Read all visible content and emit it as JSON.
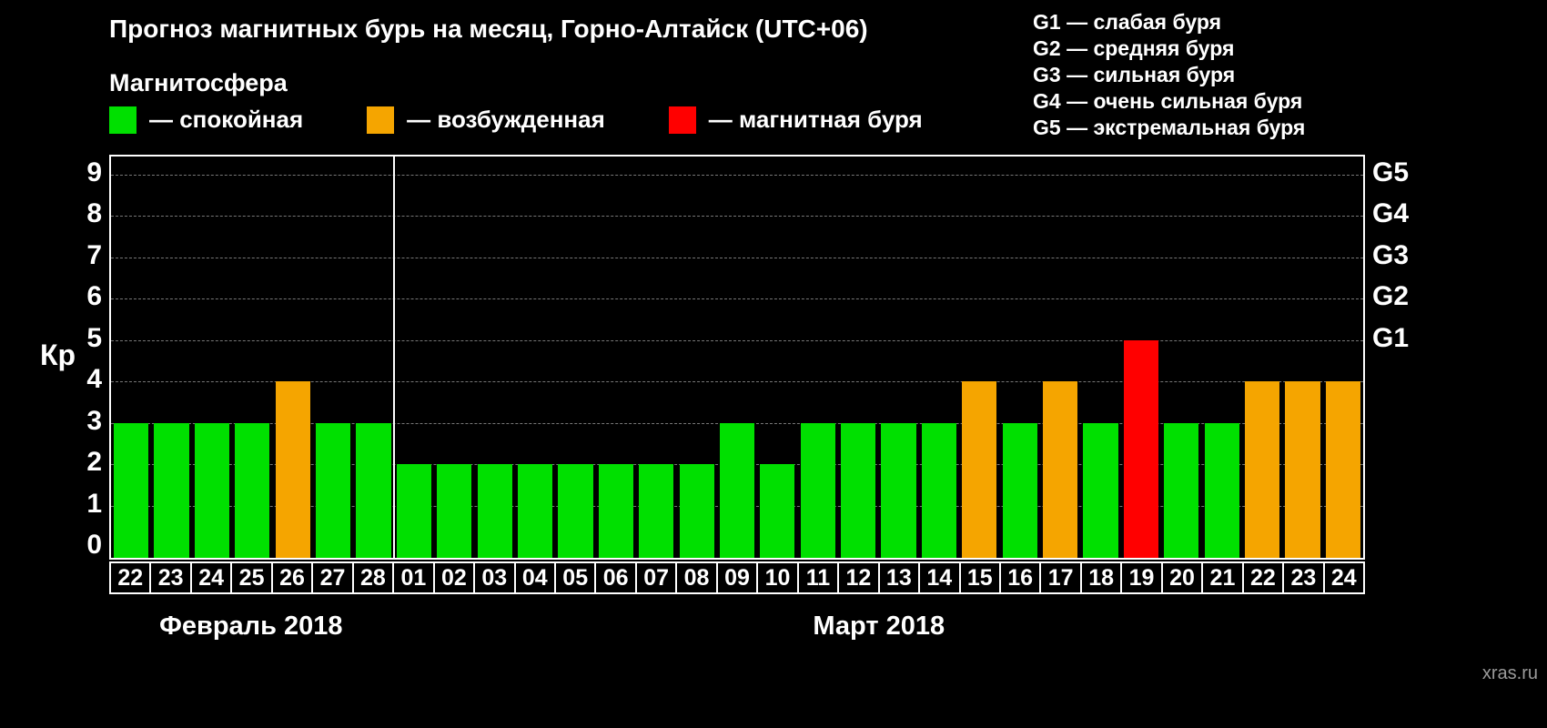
{
  "title": "Прогноз магнитных бурь на месяц, Горно-Алтайск (UTC+06)",
  "subtitle": "Магнитосфера",
  "legend": {
    "items": [
      {
        "label": "— спокойная",
        "color": "#00e000"
      },
      {
        "label": "— возбужденная",
        "color": "#f5a500"
      },
      {
        "label": "— магнитная буря",
        "color": "#ff0000"
      }
    ]
  },
  "g_legend": [
    "G1 — слабая буря",
    "G2 — средняя буря",
    "G3 — сильная буря",
    "G4 — очень сильная буря",
    "G5 — экстремальная буря"
  ],
  "watermark": "xras.ru",
  "chart_data": {
    "type": "bar",
    "title": "Прогноз магнитных бурь на месяц, Горно-Алтайск (UTC+06)",
    "ylabel": "Кр",
    "ylim": [
      0,
      9
    ],
    "yticks": [
      0,
      1,
      2,
      3,
      4,
      5,
      6,
      7,
      8,
      9
    ],
    "grid": "dashed-horizontal",
    "right_axis": [
      {
        "label": "G1",
        "kp": 5
      },
      {
        "label": "G2",
        "kp": 6
      },
      {
        "label": "G3",
        "kp": 7
      },
      {
        "label": "G4",
        "kp": 8
      },
      {
        "label": "G5",
        "kp": 9
      }
    ],
    "colors": {
      "quiet": "#00e000",
      "excited": "#f5a500",
      "storm": "#ff0000"
    },
    "thresholds": {
      "excited_min": 4,
      "storm_min": 5
    },
    "months": [
      {
        "label": "Февраль 2018",
        "days": [
          "22",
          "23",
          "24",
          "25",
          "26",
          "27",
          "28"
        ],
        "kp": [
          3,
          3,
          3,
          3,
          4,
          3,
          3
        ]
      },
      {
        "label": "Март 2018",
        "days": [
          "01",
          "02",
          "03",
          "04",
          "05",
          "06",
          "07",
          "08",
          "09",
          "10",
          "11",
          "12",
          "13",
          "14",
          "15",
          "16",
          "17",
          "18",
          "19",
          "20",
          "21",
          "22",
          "23",
          "24"
        ],
        "kp": [
          2,
          2,
          2,
          2,
          2,
          2,
          2,
          2,
          3,
          2,
          3,
          3,
          3,
          3,
          4,
          3,
          4,
          3,
          5,
          3,
          3,
          4,
          4,
          4
        ]
      }
    ]
  }
}
